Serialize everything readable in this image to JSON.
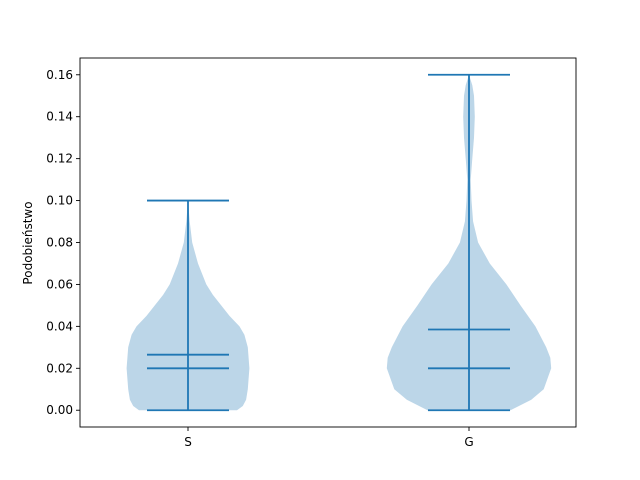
{
  "chart_data": {
    "type": "violin",
    "title": "",
    "xlabel": "",
    "ylabel": "Podobieństwo",
    "categories": [
      "S",
      "G"
    ],
    "ylim": [
      -0.008,
      0.168
    ],
    "yticks": [
      0.0,
      0.02,
      0.04,
      0.06,
      0.08,
      0.1,
      0.12,
      0.14,
      0.16
    ],
    "ytick_labels": [
      "0.00",
      "0.02",
      "0.04",
      "0.06",
      "0.08",
      "0.10",
      "0.12",
      "0.14",
      "0.16"
    ],
    "grid": false,
    "legend": "none",
    "colors": {
      "body": "#1f77b4",
      "body_fill": "#bcd6e8",
      "lines": "#1f77b4"
    },
    "series": [
      {
        "category": "S",
        "min": 0.0,
        "max": 0.1,
        "median": 0.02,
        "mean": 0.0265,
        "density": [
          [
            0.0,
            0.59
          ],
          [
            0.002,
            0.66
          ],
          [
            0.005,
            0.7
          ],
          [
            0.01,
            0.72
          ],
          [
            0.02,
            0.74
          ],
          [
            0.03,
            0.72
          ],
          [
            0.036,
            0.68
          ],
          [
            0.04,
            0.62
          ],
          [
            0.045,
            0.5
          ],
          [
            0.05,
            0.4
          ],
          [
            0.055,
            0.3
          ],
          [
            0.06,
            0.22
          ],
          [
            0.07,
            0.12
          ],
          [
            0.08,
            0.05
          ],
          [
            0.09,
            0.02
          ],
          [
            0.1,
            0.0
          ]
        ]
      },
      {
        "category": "G",
        "min": 0.0,
        "max": 0.16,
        "median": 0.02,
        "mean": 0.0385,
        "density": [
          [
            0.0,
            0.5
          ],
          [
            0.005,
            0.75
          ],
          [
            0.01,
            0.9
          ],
          [
            0.02,
            0.99
          ],
          [
            0.025,
            0.98
          ],
          [
            0.03,
            0.93
          ],
          [
            0.04,
            0.8
          ],
          [
            0.05,
            0.62
          ],
          [
            0.06,
            0.45
          ],
          [
            0.07,
            0.25
          ],
          [
            0.08,
            0.11
          ],
          [
            0.09,
            0.05
          ],
          [
            0.1,
            0.03
          ],
          [
            0.11,
            0.02
          ],
          [
            0.12,
            0.04
          ],
          [
            0.13,
            0.06
          ],
          [
            0.14,
            0.07
          ],
          [
            0.15,
            0.06
          ],
          [
            0.155,
            0.04
          ],
          [
            0.16,
            0.0
          ]
        ]
      }
    ]
  }
}
